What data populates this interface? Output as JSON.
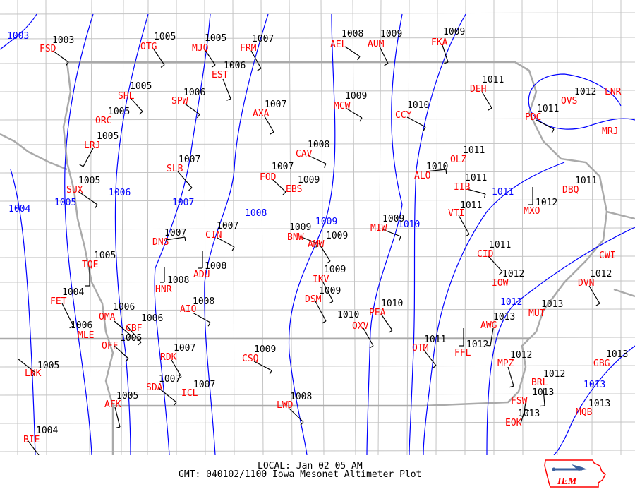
{
  "title": {
    "local": "LOCAL: Jan 02 05 AM",
    "gmt": "GMT: 040102/1100 Iowa Mesonet Altimeter Plot"
  },
  "logo": {
    "text": "IEM"
  },
  "colors": {
    "station_id": "#ff0000",
    "altimeter": "#000000",
    "isobar": "#0000ff",
    "boundaries": "#bbbbbb"
  },
  "isobar_labels": [
    "1003",
    "1004",
    "1005",
    "1006",
    "1007",
    "1008",
    "1009",
    "1010",
    "1011",
    "1012",
    "1013"
  ],
  "stations": [
    {
      "id": "FSD",
      "altimeter": "1003"
    },
    {
      "id": "OTG",
      "altimeter": "1005"
    },
    {
      "id": "MJQ",
      "altimeter": "1005"
    },
    {
      "id": "FRM",
      "altimeter": "1007"
    },
    {
      "id": "AEL",
      "altimeter": "1008"
    },
    {
      "id": "AUM",
      "altimeter": "1009"
    },
    {
      "id": "FKA",
      "altimeter": "1009"
    },
    {
      "id": "EST",
      "altimeter": "1006"
    },
    {
      "id": "SHL",
      "altimeter": "1005"
    },
    {
      "id": "SPW",
      "altimeter": "1006"
    },
    {
      "id": "AXA",
      "altimeter": "1007"
    },
    {
      "id": "MCW",
      "altimeter": "1009"
    },
    {
      "id": "CCY",
      "altimeter": "1010"
    },
    {
      "id": "DEH",
      "altimeter": "1011"
    },
    {
      "id": "OVS",
      "altimeter": "1012"
    },
    {
      "id": "LNR",
      "altimeter": ""
    },
    {
      "id": "PDC",
      "altimeter": "1011"
    },
    {
      "id": "MRJ",
      "altimeter": ""
    },
    {
      "id": "ORC",
      "altimeter": "1005"
    },
    {
      "id": "LRJ",
      "altimeter": "1005"
    },
    {
      "id": "CAV",
      "altimeter": "1008"
    },
    {
      "id": "SLB",
      "altimeter": "1007"
    },
    {
      "id": "OLZ",
      "altimeter": "1011"
    },
    {
      "id": "ALO",
      "altimeter": "1010"
    },
    {
      "id": "FOD",
      "altimeter": "1007"
    },
    {
      "id": "EBS",
      "altimeter": "1009"
    },
    {
      "id": "IIB",
      "altimeter": "1011"
    },
    {
      "id": "SUX",
      "altimeter": "1005"
    },
    {
      "id": "DBQ",
      "altimeter": "1011"
    },
    {
      "id": "MXO",
      "altimeter": "1012"
    },
    {
      "id": "VTI",
      "altimeter": "1011"
    },
    {
      "id": "MIW",
      "altimeter": "1009"
    },
    {
      "id": "DNS",
      "altimeter": "1007"
    },
    {
      "id": "CIN",
      "altimeter": "1007"
    },
    {
      "id": "BNW",
      "altimeter": "1009"
    },
    {
      "id": "AMW",
      "altimeter": "1009"
    },
    {
      "id": "CID",
      "altimeter": "1011"
    },
    {
      "id": "ADU",
      "altimeter": "1008"
    },
    {
      "id": "TQE",
      "altimeter": "1005"
    },
    {
      "id": "IKV",
      "altimeter": "1009"
    },
    {
      "id": "HNR",
      "altimeter": "1008"
    },
    {
      "id": "IOW",
      "altimeter": "1012"
    },
    {
      "id": "CWI",
      "altimeter": ""
    },
    {
      "id": "DVN",
      "altimeter": "1012"
    },
    {
      "id": "FET",
      "altimeter": "1004"
    },
    {
      "id": "DSM",
      "altimeter": "1009"
    },
    {
      "id": "AIO",
      "altimeter": "1008"
    },
    {
      "id": "MUT",
      "altimeter": "1013"
    },
    {
      "id": "AWG",
      "altimeter": "1013"
    },
    {
      "id": "OMA",
      "altimeter": "1006"
    },
    {
      "id": "MLE",
      "altimeter": "1006"
    },
    {
      "id": "CBF",
      "altimeter": "1006"
    },
    {
      "id": "OFF",
      "altimeter": "1005"
    },
    {
      "id": "PEA",
      "altimeter": "1010"
    },
    {
      "id": "OXV",
      "altimeter": "1010"
    },
    {
      "id": "OTM",
      "altimeter": "1011"
    },
    {
      "id": "FFL",
      "altimeter": "1012"
    },
    {
      "id": "CSQ",
      "altimeter": "1009"
    },
    {
      "id": "RDK",
      "altimeter": "1007"
    },
    {
      "id": "MPZ",
      "altimeter": "1012"
    },
    {
      "id": "GBG",
      "altimeter": "1013"
    },
    {
      "id": "BRL",
      "altimeter": "1012"
    },
    {
      "id": "SDA",
      "altimeter": "1007"
    },
    {
      "id": "ICL",
      "altimeter": "1007"
    },
    {
      "id": "FSW",
      "altimeter": "1013"
    },
    {
      "id": "LWD",
      "altimeter": "1008"
    },
    {
      "id": "AFK",
      "altimeter": "1005"
    },
    {
      "id": "MQB",
      "altimeter": "1013"
    },
    {
      "id": "EOK",
      "altimeter": "1013"
    },
    {
      "id": "LNK",
      "altimeter": "1005"
    },
    {
      "id": "BIE",
      "altimeter": "1004"
    }
  ]
}
